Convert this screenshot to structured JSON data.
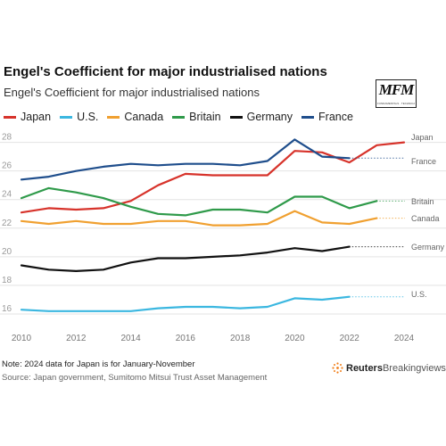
{
  "header": {
    "title": "Engel's Coefficient for major industrialised nations",
    "subtitle": "Engel's Coefficient for major industrialised nations",
    "logo_text": "MFM",
    "logo_sub": "FUNDAMENTALS · TECHNICAL · SENTIMENT"
  },
  "legend": [
    {
      "name": "Japan",
      "color": "#d7332b"
    },
    {
      "name": "U.S.",
      "color": "#3bb7e0"
    },
    {
      "name": "Canada",
      "color": "#f0a030"
    },
    {
      "name": "Britain",
      "color": "#2f9a4a"
    },
    {
      "name": "Germany",
      "color": "#111111"
    },
    {
      "name": "France",
      "color": "#1f4e8c"
    }
  ],
  "chart_data": {
    "type": "line",
    "xlim": [
      2010,
      2024
    ],
    "ylim": [
      15.5,
      28.6
    ],
    "x_ticks": [
      "2010",
      "2012",
      "2014",
      "2016",
      "2018",
      "2020",
      "2022",
      "2024"
    ],
    "y_ticks": [
      "16",
      "18",
      "20",
      "22",
      "24",
      "26",
      "28"
    ],
    "grid": true,
    "legend_position": "top-left",
    "series": [
      {
        "name": "Japan",
        "color": "#d7332b",
        "label": "Japan",
        "x": [
          2010,
          2011,
          2012,
          2013,
          2014,
          2015,
          2016,
          2017,
          2018,
          2019,
          2020,
          2021,
          2022,
          2023,
          2024
        ],
        "y": [
          23.1,
          23.4,
          23.3,
          23.4,
          23.9,
          25.0,
          25.8,
          25.7,
          25.7,
          25.7,
          27.4,
          27.3,
          26.6,
          27.8,
          28.0
        ]
      },
      {
        "name": "U.S.",
        "color": "#3bb7e0",
        "label": "U.S.",
        "x": [
          2010,
          2011,
          2012,
          2013,
          2014,
          2015,
          2016,
          2017,
          2018,
          2019,
          2020,
          2021,
          2022
        ],
        "y": [
          16.3,
          16.2,
          16.2,
          16.2,
          16.2,
          16.4,
          16.5,
          16.5,
          16.4,
          16.5,
          17.1,
          17.0,
          17.2
        ]
      },
      {
        "name": "Canada",
        "color": "#f0a030",
        "label": "Canada",
        "x": [
          2010,
          2011,
          2012,
          2013,
          2014,
          2015,
          2016,
          2017,
          2018,
          2019,
          2020,
          2021,
          2022,
          2023
        ],
        "y": [
          22.5,
          22.3,
          22.5,
          22.3,
          22.3,
          22.5,
          22.5,
          22.2,
          22.2,
          22.3,
          23.2,
          22.4,
          22.3,
          22.7
        ]
      },
      {
        "name": "Britain",
        "color": "#2f9a4a",
        "label": "Britain",
        "x": [
          2010,
          2011,
          2012,
          2013,
          2014,
          2015,
          2016,
          2017,
          2018,
          2019,
          2020,
          2021,
          2022,
          2023
        ],
        "y": [
          24.1,
          24.8,
          24.5,
          24.1,
          23.5,
          23.0,
          22.9,
          23.3,
          23.3,
          23.1,
          24.2,
          24.2,
          23.4,
          23.9
        ]
      },
      {
        "name": "Germany",
        "color": "#111111",
        "label": "Germany",
        "x": [
          2010,
          2011,
          2012,
          2013,
          2014,
          2015,
          2016,
          2017,
          2018,
          2019,
          2020,
          2021,
          2022
        ],
        "y": [
          19.4,
          19.1,
          19.0,
          19.1,
          19.6,
          19.9,
          19.9,
          20.0,
          20.1,
          20.3,
          20.6,
          20.4,
          20.7
        ]
      },
      {
        "name": "France",
        "color": "#1f4e8c",
        "label": "France",
        "x": [
          2010,
          2011,
          2012,
          2013,
          2014,
          2015,
          2016,
          2017,
          2018,
          2019,
          2020,
          2021,
          2022
        ],
        "y": [
          25.4,
          25.6,
          26.0,
          26.3,
          26.5,
          26.4,
          26.5,
          26.5,
          26.4,
          26.7,
          28.2,
          27.0,
          26.9
        ]
      }
    ]
  },
  "footer": {
    "note": "Note: 2024 data for Japan is for January-November",
    "source": "Source: Japan government, Sumitomo Mitsui Trust Asset Management",
    "brand_bold": "Reuters",
    "brand_light": "Breakingviews"
  }
}
